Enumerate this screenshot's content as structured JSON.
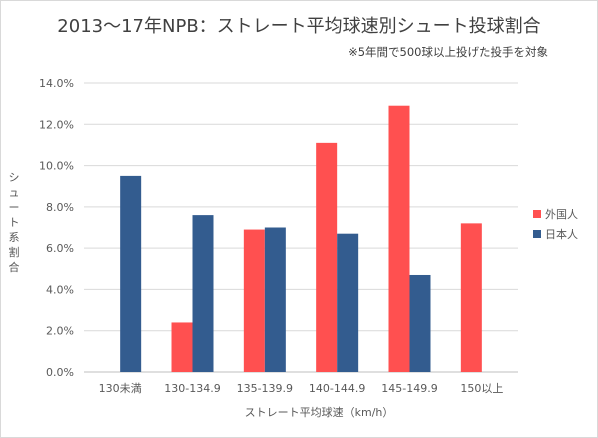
{
  "chart_data": {
    "type": "bar",
    "title": "2013～17年NPB：ストレート平均球速別シュート投球割合",
    "subtitle": "※5年間で500球以上投げた投手を対象",
    "xlabel": "ストレート平均球速（km/h）",
    "ylabel": "シュート系割合",
    "categories": [
      "130未満",
      "130-134.9",
      "135-139.9",
      "140-144.9",
      "145-149.9",
      "150以上"
    ],
    "series": [
      {
        "name": "外国人",
        "color": "#ff5050",
        "values": [
          null,
          2.4,
          6.9,
          11.1,
          12.9,
          7.2
        ]
      },
      {
        "name": "日本人",
        "color": "#335c8f",
        "values": [
          9.5,
          7.6,
          7.0,
          6.7,
          4.7,
          null
        ]
      }
    ],
    "ylim": [
      0,
      14
    ],
    "yticks": [
      "0.0%",
      "2.0%",
      "4.0%",
      "6.0%",
      "8.0%",
      "10.0%",
      "12.0%",
      "14.0%"
    ],
    "grid": true,
    "legend_position": "right"
  }
}
